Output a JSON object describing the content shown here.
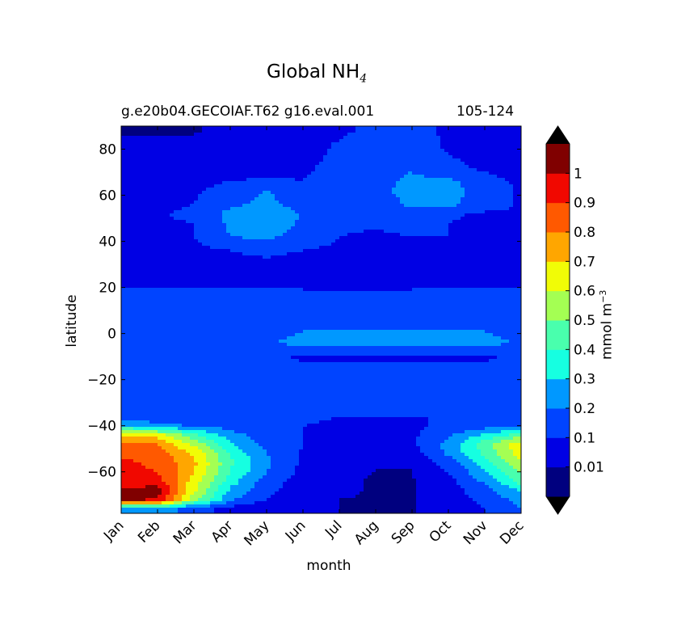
{
  "title": {
    "prefix": "Global NH",
    "subscript": "4"
  },
  "subtitle_left": "g.e20b04.GECOIAF.T62 g16.eval.001",
  "subtitle_right": "105-124",
  "colorbar_label": {
    "main": "mmol m",
    "sup": "−3"
  },
  "chart_data": {
    "type": "heatmap",
    "subtype": "filled-contour",
    "title": "Global NH4",
    "subtitle": [
      "g.e20b04.GECOIAF.T62 g16.eval.001",
      "105-124"
    ],
    "xlabel": "month",
    "ylabel": "latitude",
    "x_categories": [
      "Jan",
      "Feb",
      "Mar",
      "Apr",
      "May",
      "Jun",
      "Jul",
      "Aug",
      "Sep",
      "Oct",
      "Nov",
      "Dec"
    ],
    "y_ticks": [
      {
        "value": 80,
        "label": "80"
      },
      {
        "value": 60,
        "label": "60"
      },
      {
        "value": 40,
        "label": "40"
      },
      {
        "value": 20,
        "label": "20"
      },
      {
        "value": 0,
        "label": "0"
      },
      {
        "value": -20,
        "label": "−20"
      },
      {
        "value": -40,
        "label": "−40"
      },
      {
        "value": -60,
        "label": "−60"
      }
    ],
    "ylim": [
      -78,
      90
    ],
    "colorbar": {
      "label": "mmol m⁻³",
      "extend": "both",
      "tick_labels": [
        "0.01",
        "0.1",
        "0.2",
        "0.3",
        "0.4",
        "0.5",
        "0.6",
        "0.7",
        "0.8",
        "0.9",
        "1"
      ],
      "bins": [
        {
          "lo": 0.0,
          "hi": 0.01,
          "color": "#00007f"
        },
        {
          "lo": 0.01,
          "hi": 0.1,
          "color": "#0000e4"
        },
        {
          "lo": 0.1,
          "hi": 0.2,
          "color": "#0044ff"
        },
        {
          "lo": 0.2,
          "hi": 0.3,
          "color": "#0098ff"
        },
        {
          "lo": 0.3,
          "hi": 0.4,
          "color": "#16ffe1"
        },
        {
          "lo": 0.4,
          "hi": 0.5,
          "color": "#49ffad"
        },
        {
          "lo": 0.5,
          "hi": 0.6,
          "color": "#a4ff53"
        },
        {
          "lo": 0.6,
          "hi": 0.7,
          "color": "#f1fc06"
        },
        {
          "lo": 0.7,
          "hi": 0.8,
          "color": "#ffa600"
        },
        {
          "lo": 0.8,
          "hi": 0.9,
          "color": "#ff5900"
        },
        {
          "lo": 0.9,
          "hi": 1.0,
          "color": "#f10800"
        },
        {
          "lo": 1.0,
          "hi": 1.1,
          "color": "#800000"
        }
      ],
      "under_color": "#000000",
      "over_color": "#000000"
    },
    "months_idx": [
      0,
      1,
      2,
      3,
      4,
      5,
      6,
      7,
      8,
      9,
      10,
      11
    ],
    "latitudes": [
      -76,
      -72,
      -68,
      -64,
      -60,
      -56,
      -52,
      -48,
      -44,
      -40,
      -36,
      -30,
      -20,
      -10,
      -4,
      0,
      6,
      16,
      24,
      30,
      36,
      42,
      48,
      52,
      56,
      62,
      66,
      72,
      80,
      88
    ],
    "values": [
      [
        0.2,
        0.25,
        0.15,
        0.06,
        0.03,
        0.02,
        0.01,
        0.005,
        0.005,
        0.05,
        0.1,
        0.2
      ],
      [
        1.02,
        1.0,
        0.55,
        0.22,
        0.1,
        0.04,
        0.01,
        0.005,
        0.005,
        0.06,
        0.12,
        0.25
      ],
      [
        1.0,
        1.05,
        0.62,
        0.28,
        0.12,
        0.05,
        0.02,
        0.005,
        0.005,
        0.06,
        0.15,
        0.32
      ],
      [
        0.95,
        0.95,
        0.65,
        0.35,
        0.15,
        0.06,
        0.02,
        0.005,
        0.005,
        0.07,
        0.22,
        0.45
      ],
      [
        0.92,
        0.9,
        0.7,
        0.4,
        0.2,
        0.07,
        0.03,
        0.008,
        0.008,
        0.1,
        0.28,
        0.52
      ],
      [
        0.92,
        0.88,
        0.72,
        0.42,
        0.22,
        0.08,
        0.04,
        0.02,
        0.02,
        0.14,
        0.35,
        0.58
      ],
      [
        0.88,
        0.86,
        0.68,
        0.38,
        0.2,
        0.09,
        0.05,
        0.05,
        0.06,
        0.22,
        0.42,
        0.66
      ],
      [
        0.82,
        0.8,
        0.58,
        0.32,
        0.17,
        0.1,
        0.06,
        0.06,
        0.08,
        0.24,
        0.45,
        0.68
      ],
      [
        0.7,
        0.65,
        0.42,
        0.24,
        0.14,
        0.1,
        0.08,
        0.08,
        0.08,
        0.18,
        0.32,
        0.45
      ],
      [
        0.3,
        0.25,
        0.18,
        0.16,
        0.12,
        0.1,
        0.09,
        0.09,
        0.09,
        0.11,
        0.15,
        0.2
      ],
      [
        0.11,
        0.11,
        0.11,
        0.12,
        0.12,
        0.11,
        0.1,
        0.1,
        0.1,
        0.1,
        0.1,
        0.11
      ],
      [
        0.11,
        0.11,
        0.11,
        0.11,
        0.11,
        0.11,
        0.11,
        0.11,
        0.11,
        0.11,
        0.11,
        0.11
      ],
      [
        0.13,
        0.13,
        0.13,
        0.13,
        0.13,
        0.13,
        0.13,
        0.13,
        0.13,
        0.13,
        0.13,
        0.13
      ],
      [
        0.15,
        0.15,
        0.15,
        0.15,
        0.12,
        0.09,
        0.09,
        0.09,
        0.09,
        0.09,
        0.09,
        0.12
      ],
      [
        0.15,
        0.15,
        0.15,
        0.15,
        0.19,
        0.23,
        0.23,
        0.23,
        0.23,
        0.23,
        0.23,
        0.19
      ],
      [
        0.15,
        0.15,
        0.15,
        0.15,
        0.16,
        0.21,
        0.21,
        0.21,
        0.21,
        0.21,
        0.21,
        0.16
      ],
      [
        0.15,
        0.15,
        0.15,
        0.15,
        0.15,
        0.15,
        0.15,
        0.15,
        0.15,
        0.15,
        0.15,
        0.15
      ],
      [
        0.12,
        0.12,
        0.12,
        0.12,
        0.12,
        0.12,
        0.12,
        0.12,
        0.12,
        0.12,
        0.12,
        0.12
      ],
      [
        0.08,
        0.08,
        0.08,
        0.08,
        0.08,
        0.07,
        0.04,
        0.05,
        0.07,
        0.08,
        0.08,
        0.08
      ],
      [
        0.07,
        0.07,
        0.07,
        0.07,
        0.07,
        0.05,
        0.06,
        0.04,
        0.06,
        0.07,
        0.07,
        0.07
      ],
      [
        0.08,
        0.08,
        0.08,
        0.1,
        0.13,
        0.1,
        0.08,
        0.07,
        0.08,
        0.09,
        0.09,
        0.08
      ],
      [
        0.09,
        0.09,
        0.1,
        0.2,
        0.22,
        0.16,
        0.1,
        0.09,
        0.1,
        0.1,
        0.09,
        0.09
      ],
      [
        0.09,
        0.09,
        0.1,
        0.22,
        0.28,
        0.18,
        0.11,
        0.11,
        0.12,
        0.1,
        0.09,
        0.09
      ],
      [
        0.09,
        0.09,
        0.12,
        0.23,
        0.29,
        0.19,
        0.12,
        0.12,
        0.15,
        0.11,
        0.09,
        0.09
      ],
      [
        0.08,
        0.08,
        0.1,
        0.18,
        0.22,
        0.16,
        0.12,
        0.14,
        0.22,
        0.23,
        0.14,
        0.09
      ],
      [
        0.08,
        0.08,
        0.09,
        0.13,
        0.21,
        0.13,
        0.12,
        0.16,
        0.25,
        0.24,
        0.15,
        0.09
      ],
      [
        0.07,
        0.07,
        0.08,
        0.1,
        0.11,
        0.1,
        0.13,
        0.17,
        0.22,
        0.22,
        0.14,
        0.08
      ],
      [
        0.06,
        0.06,
        0.06,
        0.07,
        0.08,
        0.09,
        0.12,
        0.18,
        0.19,
        0.13,
        0.08,
        0.06
      ],
      [
        0.03,
        0.03,
        0.03,
        0.04,
        0.05,
        0.06,
        0.12,
        0.2,
        0.15,
        0.09,
        0.05,
        0.05
      ],
      [
        0.005,
        0.005,
        0.005,
        0.03,
        0.04,
        0.05,
        0.08,
        0.12,
        0.12,
        0.09,
        0.05,
        0.05
      ]
    ]
  }
}
